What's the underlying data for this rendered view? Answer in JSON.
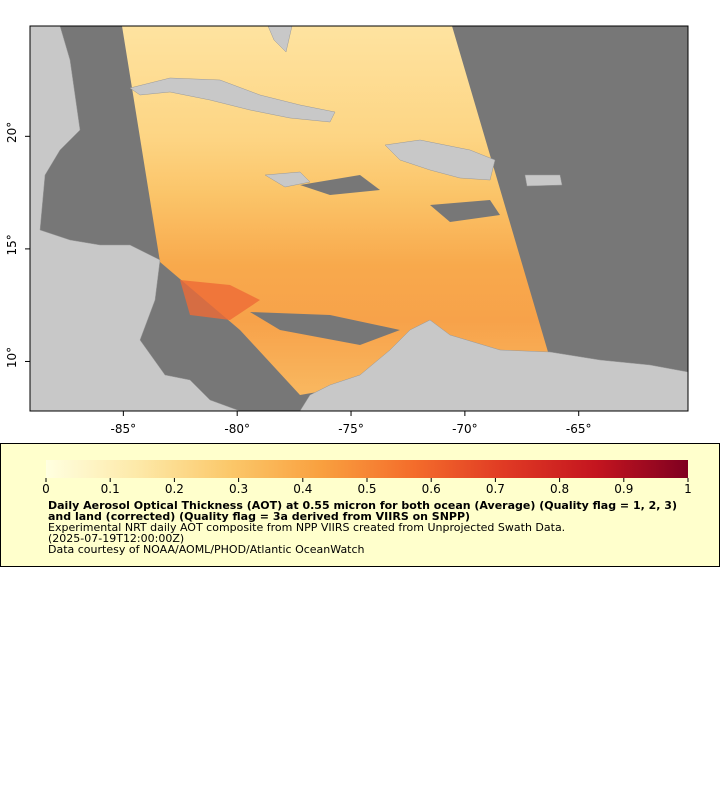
{
  "chart_data": {
    "type": "map",
    "xlim": [
      -89.1,
      -60.2
    ],
    "ylim": [
      7.8,
      24.9
    ],
    "xticks": [
      {
        "value": -85,
        "label": "-85°"
      },
      {
        "value": -80,
        "label": "-80°"
      },
      {
        "value": -75,
        "label": "-75°"
      },
      {
        "value": -70,
        "label": "-70°"
      },
      {
        "value": -65,
        "label": "-65°"
      }
    ],
    "yticks": [
      {
        "value": 10,
        "label": "10°"
      },
      {
        "value": 15,
        "label": "15°"
      },
      {
        "value": 20,
        "label": "20°"
      }
    ],
    "colorbar": {
      "clim": [
        0,
        1
      ],
      "ticks": [
        0,
        0.1,
        0.2,
        0.3,
        0.4,
        0.5,
        0.6,
        0.7,
        0.8,
        0.9,
        1
      ],
      "colors": [
        "#ffffe0",
        "#fde9a8",
        "#fbc86a",
        "#f9a03f",
        "#f46d2b",
        "#e03a24",
        "#c4151f",
        "#7f0020"
      ]
    },
    "title": "Daily Aerosol Optical Thickness (AOT) at 0.55 micron for both ocean (Average) (Quality flag = 1, 2, 3) and land (corrected) (Quality flag = 3a derived from VIIRS on SNPP)",
    "notes": [
      "Experimental NRT daily AOT composite from NPP VIIRS created from Unprojected Swath Data.",
      "(2025-07-19T12:00:00Z)",
      "Data courtesy of NOAA/AOML/PHOD/Atlantic OceanWatch"
    ]
  }
}
